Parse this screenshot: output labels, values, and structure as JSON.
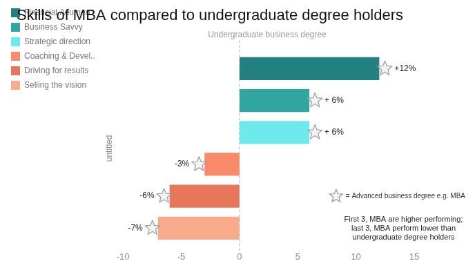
{
  "chart_data": {
    "type": "bar",
    "orientation": "horizontal",
    "title": "Skills of MBA compared to undergraduate degree holders",
    "ylabel": "untitled",
    "categories": [
      "Financial Acumen",
      "Business Savvy",
      "Strategic direction",
      "Coaching & Devel..",
      "Driving for results",
      "Selling the vision"
    ],
    "values": [
      12,
      6,
      6,
      -3,
      -6,
      -7
    ],
    "value_labels": [
      "+12%",
      "+ 6%",
      "+ 6%",
      "-3%",
      "-6%",
      "-7%"
    ],
    "colors": [
      "#228080",
      "#31a6a1",
      "#6eeaec",
      "#f98a6a",
      "#e7775b",
      "#f9ab8b"
    ],
    "xlim": [
      -10,
      15
    ],
    "xticks": [
      -10,
      -5,
      0,
      5,
      10,
      15
    ],
    "grid": false,
    "legend": "top-left",
    "data_labels": true,
    "tick_labels": "x",
    "reference_line": {
      "value": 0,
      "label": "Undergraduate business degree"
    },
    "annotations": [
      "= Advanced business degree e.g. MBA",
      "First 3, MBA are higher performing; last 3, MBA perform lower than undergraduate degree holders"
    ]
  }
}
